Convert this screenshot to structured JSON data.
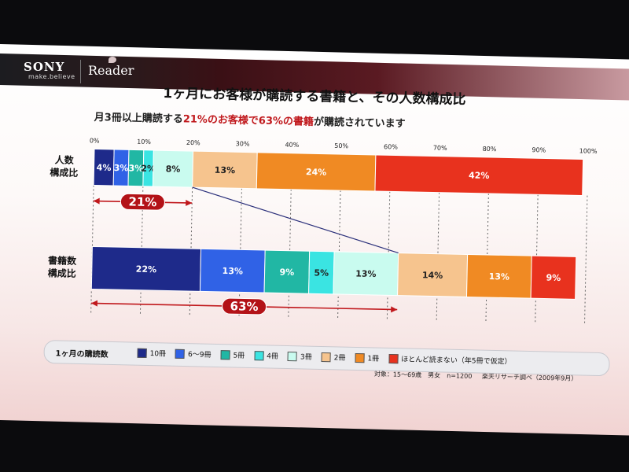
{
  "brand": {
    "company": "SONY",
    "tagline": "make.believe",
    "product": "Reader"
  },
  "slide": {
    "title": "1ヶ月にお客様が購読する書籍と、その人数構成比",
    "subtitle_pre": "月3冊以上購読する",
    "subtitle_hl1": "21%のお客様で63%の書籍",
    "subtitle_post": "が購読されています"
  },
  "footnote": {
    "target": "対象：15～69歳　男女　n=1200",
    "source": "楽天リサーチ調べ（2009年9月）"
  },
  "legend": {
    "title": "1ヶ月の購読数",
    "items": [
      "10冊",
      "6～9冊",
      "5冊",
      "4冊",
      "3冊",
      "2冊",
      "1冊",
      "ほとんど読まない（年5冊で仮定）"
    ]
  },
  "chart_data": {
    "type": "bar",
    "stacked": true,
    "orientation": "horizontal",
    "x_ticks": [
      "0%",
      "10%",
      "20%",
      "30%",
      "40%",
      "50%",
      "60%",
      "70%",
      "80%",
      "90%",
      "100%"
    ],
    "xlim": [
      0,
      100
    ],
    "categories": [
      "10冊",
      "6～9冊",
      "5冊",
      "4冊",
      "3冊",
      "2冊",
      "1冊",
      "ほとんど読まない（年5冊で仮定）"
    ],
    "colors": [
      "#1e2a8a",
      "#3062e6",
      "#21b7a4",
      "#3ae4e2",
      "#c9fbef",
      "#f6c48e",
      "#f08a23",
      "#e8321e"
    ],
    "rows": [
      {
        "label": [
          "人数",
          "構成比"
        ],
        "values": [
          4,
          3,
          3,
          2,
          8,
          13,
          24,
          42
        ],
        "value_labels": [
          "4%",
          "3%",
          "3%",
          "2%",
          "8%",
          "13%",
          "24%",
          "42%"
        ],
        "bracket": "21%"
      },
      {
        "label": [
          "書籍数",
          "構成比"
        ],
        "values": [
          22,
          13,
          9,
          5,
          13,
          14,
          13,
          9
        ],
        "value_labels": [
          "22%",
          "13%",
          "9%",
          "5%",
          "13%",
          "14%",
          "13%",
          "9%"
        ],
        "bracket": "63%"
      }
    ]
  }
}
